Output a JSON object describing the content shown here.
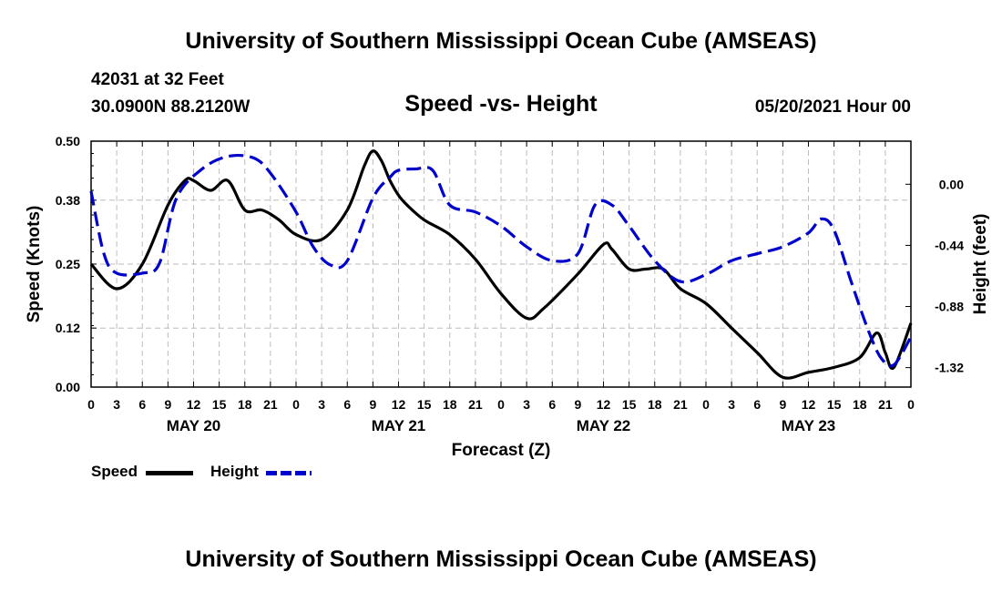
{
  "page": {
    "title_top": "University of Southern Mississippi Ocean Cube (AMSEAS)",
    "title_bottom": "University of Southern Mississippi Ocean Cube (AMSEAS)",
    "station": "42031 at 32 Feet",
    "coords": "30.0900N  88.2120W",
    "subtitle": "Speed -vs- Height",
    "datetime": "05/20/2021 Hour 00"
  },
  "chart_data": {
    "type": "line",
    "title": "Speed -vs- Height",
    "xlabel": "Forecast (Z)",
    "ylabel": "Speed (Knots)",
    "y2label": "Height (feet)",
    "xlim": [
      0,
      96
    ],
    "ylim": [
      0,
      0.5
    ],
    "y2lim": [
      -1.46,
      0.31
    ],
    "grid": true,
    "x_ticks": [
      0,
      3,
      6,
      9,
      12,
      15,
      18,
      21,
      24,
      27,
      30,
      33,
      36,
      39,
      42,
      45,
      48,
      51,
      54,
      57,
      60,
      63,
      66,
      69,
      72,
      75,
      78,
      81,
      84,
      87,
      90,
      93,
      96
    ],
    "x_tick_labels": [
      "0",
      "3",
      "6",
      "9",
      "12",
      "15",
      "18",
      "21",
      "0",
      "3",
      "6",
      "9",
      "12",
      "15",
      "18",
      "21",
      "0",
      "3",
      "6",
      "9",
      "12",
      "15",
      "18",
      "21",
      "0",
      "3",
      "6",
      "9",
      "12",
      "15",
      "18",
      "21",
      "0"
    ],
    "date_labels": [
      {
        "x": 12,
        "label": "MAY 20"
      },
      {
        "x": 36,
        "label": "MAY 21"
      },
      {
        "x": 60,
        "label": "MAY 22"
      },
      {
        "x": 84,
        "label": "MAY 23"
      }
    ],
    "y_ticks": [
      0.0,
      0.12,
      0.25,
      0.38,
      0.5
    ],
    "y_tick_labels": [
      "0.00",
      "0.12",
      "0.25",
      "0.38",
      "0.50"
    ],
    "y2_ticks": [
      0.0,
      -0.44,
      -0.88,
      -1.32
    ],
    "y2_tick_labels": [
      "0.00",
      "-0.44",
      "-0.88",
      "-1.32"
    ],
    "series": [
      {
        "name": "Speed",
        "axis": "left",
        "color": "#000000",
        "dash": "solid",
        "x": [
          0,
          3,
          6,
          9,
          11,
          12,
          14,
          16,
          18,
          20,
          22,
          24,
          27,
          30,
          32,
          33,
          34,
          35,
          36,
          37,
          39,
          42,
          45,
          48,
          51,
          53,
          57,
          60,
          61,
          63,
          65,
          67,
          69,
          72,
          75,
          78,
          81,
          84,
          87,
          90,
          92,
          93,
          94,
          96
        ],
        "values": [
          0.25,
          0.2,
          0.25,
          0.37,
          0.42,
          0.42,
          0.4,
          0.42,
          0.36,
          0.36,
          0.34,
          0.31,
          0.3,
          0.36,
          0.45,
          0.48,
          0.46,
          0.42,
          0.39,
          0.37,
          0.34,
          0.31,
          0.26,
          0.19,
          0.14,
          0.16,
          0.23,
          0.29,
          0.28,
          0.24,
          0.24,
          0.24,
          0.2,
          0.17,
          0.12,
          0.07,
          0.02,
          0.03,
          0.04,
          0.06,
          0.11,
          0.07,
          0.04,
          0.13
        ]
      },
      {
        "name": "Height",
        "axis": "right",
        "color": "#0000cc",
        "dash": "dashed",
        "x": [
          0,
          1.5,
          3,
          6,
          8,
          10,
          13,
          16,
          19,
          21,
          24,
          26,
          28,
          30,
          33,
          35,
          36,
          38,
          40,
          42,
          45,
          48,
          51,
          54,
          57,
          59,
          61,
          63,
          66,
          69,
          72,
          75,
          78,
          81,
          84,
          85.5,
          87,
          89,
          91,
          92.5,
          94,
          96
        ],
        "values": [
          -0.05,
          -0.5,
          -0.64,
          -0.64,
          -0.57,
          -0.1,
          0.11,
          0.2,
          0.19,
          0.08,
          -0.2,
          -0.45,
          -0.58,
          -0.55,
          -0.1,
          0.05,
          0.1,
          0.11,
          0.1,
          -0.15,
          -0.2,
          -0.3,
          -0.45,
          -0.55,
          -0.5,
          -0.15,
          -0.15,
          -0.3,
          -0.55,
          -0.7,
          -0.65,
          -0.55,
          -0.5,
          -0.45,
          -0.35,
          -0.25,
          -0.33,
          -0.7,
          -1.05,
          -1.25,
          -1.3,
          -1.1
        ]
      }
    ],
    "legend": [
      {
        "label": "Speed",
        "color": "#000000",
        "dash": "solid"
      },
      {
        "label": "Height",
        "color": "#0000cc",
        "dash": "dashed"
      }
    ],
    "legend_position": "bottom-left"
  }
}
